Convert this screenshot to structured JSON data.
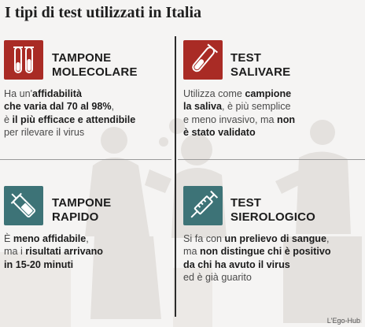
{
  "title": "I tipi di test utilizzati in Italia",
  "colors": {
    "red_accent": "#a92b25",
    "teal_accent": "#3d7377",
    "text": "#333333"
  },
  "cards": {
    "molecolare": {
      "icon": "test-tubes-icon",
      "heading": [
        "TAMPONE",
        "MOLECOLARE"
      ],
      "desc": [
        [
          {
            "t": "Ha un'"
          },
          {
            "t": "affidabilità",
            "b": true
          }
        ],
        [
          {
            "t": "che varia dal 70 al 98%",
            "b": true
          },
          {
            "t": ","
          }
        ],
        [
          {
            "t": "è "
          },
          {
            "t": "il più efficace e attendibile",
            "b": true
          }
        ],
        [
          {
            "t": "per rilevare il virus"
          }
        ]
      ]
    },
    "salivare": {
      "icon": "saliva-tube-icon",
      "heading": [
        "TEST",
        "SALIVARE"
      ],
      "desc": [
        [
          {
            "t": "Utilizza come "
          },
          {
            "t": "campione",
            "b": true
          }
        ],
        [
          {
            "t": "la saliva",
            "b": true
          },
          {
            "t": ", è più semplice"
          }
        ],
        [
          {
            "t": "e meno invasivo, ma "
          },
          {
            "t": "non",
            "b": true
          }
        ],
        [
          {
            "t": "è stato validato",
            "b": true
          }
        ]
      ]
    },
    "rapido": {
      "icon": "swab-vial-icon",
      "heading": [
        "TAMPONE",
        "RAPIDO"
      ],
      "desc": [
        [
          {
            "t": "È "
          },
          {
            "t": "meno affidabile",
            "b": true
          },
          {
            "t": ","
          }
        ],
        [
          {
            "t": "ma i "
          },
          {
            "t": "risultati arrivano",
            "b": true
          }
        ],
        [
          {
            "t": "in 15-20 minuti",
            "b": true
          }
        ]
      ]
    },
    "sierologico": {
      "icon": "syringe-icon",
      "heading": [
        "TEST",
        "SIEROLOGICO"
      ],
      "desc": [
        [
          {
            "t": "Si fa con "
          },
          {
            "t": "un prelievo di sangue",
            "b": true
          },
          {
            "t": ","
          }
        ],
        [
          {
            "t": "ma "
          },
          {
            "t": "non distingue chi è positivo",
            "b": true
          }
        ],
        [
          {
            "t": "da chi ha avuto il virus",
            "b": true
          }
        ],
        [
          {
            "t": "ed è già guarito"
          }
        ]
      ]
    }
  },
  "credit": "L'Ego-Hub"
}
